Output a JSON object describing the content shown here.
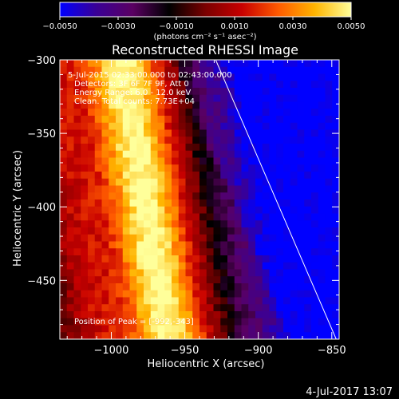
{
  "colorbar": {
    "ticks": [
      "-0.0050",
      "-0.0030",
      "-0.0010",
      "0.0010",
      "0.0030",
      "0.0050"
    ],
    "units": "(photons cm⁻² s⁻¹ asec⁻²)",
    "stops": [
      "#0000ff",
      "#3a0096",
      "#5a0062",
      "#000000",
      "#7a0000",
      "#c80000",
      "#ff5a00",
      "#ffb400",
      "#ffff9a"
    ]
  },
  "annotations": {
    "line1": "5-Jul-2015 02:33:00.000 to 02:43:00.000",
    "line2": "Detectors: 3F 6F 7F 9F, Att 0",
    "line3": "Energy Range: 6.0 - 12.0 keV",
    "line4": "Clean. Total counts: 7.73E+04",
    "peak": "Position of Peak = [-992,-343]"
  },
  "footer": {
    "date": "4-Jul-2017 13:07"
  },
  "chart_data": {
    "type": "heatmap",
    "title": "Reconstructed RHESSI Image",
    "xlabel": "Heliocentric X (arcsec)",
    "ylabel": "Heliocentric Y (arcsec)",
    "xlim": [
      -1035,
      -845
    ],
    "ylim": [
      -490,
      -300
    ],
    "xticks": [
      -1000,
      -950,
      -900,
      -850
    ],
    "yticks": [
      -300,
      -350,
      -400,
      -450
    ],
    "xtick_labels": [
      "−1000",
      "−950",
      "−900",
      "−850"
    ],
    "ytick_labels": [
      "−300",
      "−350",
      "−400",
      "−450"
    ],
    "color_range": [
      -0.005,
      0.005
    ],
    "limb_line": [
      [
        -929,
        -300
      ],
      [
        -847,
        -490
      ]
    ],
    "peak_position": [
      -992,
      -343
    ]
  }
}
